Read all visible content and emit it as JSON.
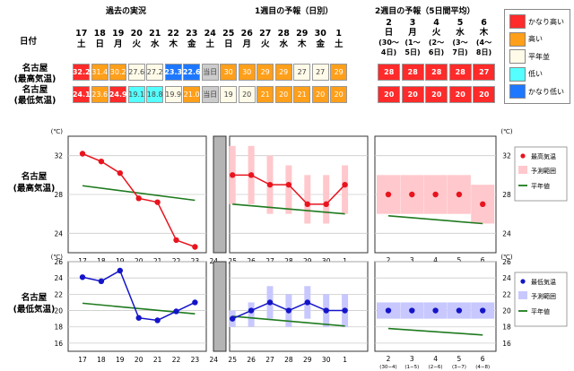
{
  "headers": {
    "past": "過去の実況",
    "week1": "1週目の予報（日別）",
    "week2": "2週目の予報（5日間平均）",
    "date_label": "日付"
  },
  "days": [
    {
      "d": "17",
      "w": "土"
    },
    {
      "d": "18",
      "w": "日"
    },
    {
      "d": "19",
      "w": "月"
    },
    {
      "d": "20",
      "w": "火"
    },
    {
      "d": "21",
      "w": "水"
    },
    {
      "d": "22",
      "w": "木"
    },
    {
      "d": "23",
      "w": "金"
    },
    {
      "d": "24",
      "w": "土"
    },
    {
      "d": "25",
      "w": "日"
    },
    {
      "d": "26",
      "w": "月"
    },
    {
      "d": "27",
      "w": "火"
    },
    {
      "d": "28",
      "w": "水"
    },
    {
      "d": "29",
      "w": "木"
    },
    {
      "d": "30",
      "w": "金"
    },
    {
      "d": "1",
      "w": "土"
    }
  ],
  "week2_cols": [
    {
      "d": "2",
      "w": "日",
      "r1": "(30～",
      "r2": "4日)"
    },
    {
      "d": "3",
      "w": "月",
      "r1": "(1～",
      "r2": "5日)"
    },
    {
      "d": "4",
      "w": "火",
      "r1": "(2～",
      "r2": "6日)"
    },
    {
      "d": "5",
      "w": "水",
      "r1": "(3～",
      "r2": "7日)"
    },
    {
      "d": "6",
      "w": "木",
      "r1": "(4～",
      "r2": "8日)"
    }
  ],
  "rows": {
    "max_label1": "名古屋",
    "max_label2": "(最高気温)",
    "min_label1": "名古屋",
    "min_label2": "(最低気温)",
    "today_text": "当日",
    "max_cells": [
      "32.2",
      "31.4",
      "30.2",
      "27.6",
      "27.2",
      "23.3",
      "22.6",
      "当日",
      "30",
      "30",
      "29",
      "29",
      "27",
      "27",
      "29"
    ],
    "max_colors": [
      "#ff2a2a",
      "#ff9f1a",
      "#ff9f1a",
      "#fffbe8",
      "#fffbe8",
      "#1e78ff",
      "#1e78ff",
      "#cccccc",
      "#ff9f1a",
      "#ff9f1a",
      "#ff9f1a",
      "#ff9f1a",
      "#fffbe8",
      "#fffbe8",
      "#ff9f1a"
    ],
    "max_w2": [
      "28",
      "28",
      "28",
      "28",
      "27"
    ],
    "min_cells": [
      "24.1",
      "23.6",
      "24.9",
      "19.1",
      "18.8",
      "19.9",
      "21.0",
      "当日",
      "19",
      "20",
      "21",
      "20",
      "21",
      "20",
      "20"
    ],
    "min_colors": [
      "#ff2a2a",
      "#ff9f1a",
      "#ff2a2a",
      "#55ffff",
      "#55ffff",
      "#fffbe8",
      "#ff9f1a",
      "#cccccc",
      "#fffbe8",
      "#fffbe8",
      "#ff9f1a",
      "#ff9f1a",
      "#ff9f1a",
      "#ff9f1a",
      "#ff9f1a"
    ],
    "min_w2": [
      "20",
      "20",
      "20",
      "20",
      "20"
    ]
  },
  "category_legend": [
    {
      "label": "かなり高い",
      "color": "#ff2a2a"
    },
    {
      "label": "高い",
      "color": "#ff9f1a"
    },
    {
      "label": "平年並",
      "color": "#fffbe8"
    },
    {
      "label": "低い",
      "color": "#55ffff"
    },
    {
      "label": "かなり低い",
      "color": "#1e78ff"
    }
  ],
  "chart_data": [
    {
      "type": "line",
      "title": "名古屋 (最高気温)",
      "unit": "(℃)",
      "ylim": [
        22,
        34
      ],
      "yticks": [
        24,
        28,
        32
      ],
      "x": [
        "17",
        "18",
        "19",
        "20",
        "21",
        "22",
        "23",
        "24",
        "25",
        "26",
        "27",
        "28",
        "29",
        "30",
        "1"
      ],
      "observed": [
        32.2,
        31.4,
        30.2,
        27.6,
        27.2,
        23.3,
        22.6
      ],
      "forecast": [
        30,
        30,
        29,
        29,
        27,
        27,
        29
      ],
      "forecast_range": [
        [
          27,
          33
        ],
        [
          27,
          33
        ],
        [
          26,
          32
        ],
        [
          26,
          31
        ],
        [
          25,
          30
        ],
        [
          25,
          30
        ],
        [
          26,
          31
        ]
      ],
      "normal_past": [
        28.9,
        28.7,
        28.4,
        28.1,
        27.9,
        27.6,
        27.4
      ],
      "normal_forecast": [
        27.0,
        26.9,
        26.7,
        26.6,
        26.4,
        26.2,
        26.0
      ],
      "week2_x": [
        "2",
        "3",
        "4",
        "5",
        "6"
      ],
      "week2_sub": [
        "(30−4)",
        "(1−5)",
        "(2−6)",
        "(3−7)",
        "(4−8)"
      ],
      "week2_value": [
        28,
        28,
        28,
        28,
        27
      ],
      "week2_range": [
        [
          26,
          30
        ],
        [
          26,
          30
        ],
        [
          26,
          30
        ],
        [
          26,
          30
        ],
        [
          25,
          29
        ]
      ],
      "week2_normal": [
        25.8,
        25.6,
        25.4,
        25.2,
        25.0
      ],
      "legend": [
        "最高気温",
        "予測範囲",
        "平年値"
      ]
    },
    {
      "type": "line",
      "title": "名古屋 (最低気温)",
      "unit": "(℃)",
      "ylim": [
        15,
        26
      ],
      "yticks": [
        16,
        18,
        20,
        22,
        24,
        26
      ],
      "x": [
        "17",
        "18",
        "19",
        "20",
        "21",
        "22",
        "23",
        "24",
        "25",
        "26",
        "27",
        "28",
        "29",
        "30",
        "1"
      ],
      "observed": [
        24.1,
        23.6,
        24.9,
        19.1,
        18.8,
        19.9,
        21.0
      ],
      "forecast": [
        19,
        20,
        21,
        20,
        21,
        20,
        20
      ],
      "forecast_range": [
        [
          18,
          20
        ],
        [
          18,
          21
        ],
        [
          19,
          23
        ],
        [
          18,
          22
        ],
        [
          19,
          23
        ],
        [
          18,
          22
        ],
        [
          18,
          22
        ]
      ],
      "normal_past": [
        20.9,
        20.7,
        20.5,
        20.3,
        20.0,
        19.8,
        19.6
      ],
      "normal_forecast": [
        19.3,
        19.1,
        18.9,
        18.7,
        18.5,
        18.3,
        18.1
      ],
      "week2_x": [
        "2",
        "3",
        "4",
        "5",
        "6"
      ],
      "week2_sub": [
        "(30−4)",
        "(1−5)",
        "(2−6)",
        "(3−7)",
        "(4−8)"
      ],
      "week2_value": [
        20,
        20,
        20,
        20,
        20
      ],
      "week2_range": [
        [
          19,
          21
        ],
        [
          19,
          21
        ],
        [
          19,
          21
        ],
        [
          19,
          21
        ],
        [
          19,
          21
        ]
      ],
      "week2_normal": [
        17.8,
        17.6,
        17.4,
        17.2,
        17.0
      ],
      "legend": [
        "最低気温",
        "予測範囲",
        "平年値"
      ]
    }
  ],
  "colors": {
    "max": "#e8141e",
    "min": "#1414c8",
    "normal": "#1e7a1e",
    "max_range": "#ffc8cc",
    "min_range": "#c8c8ff",
    "today": "#b4b4b4"
  }
}
